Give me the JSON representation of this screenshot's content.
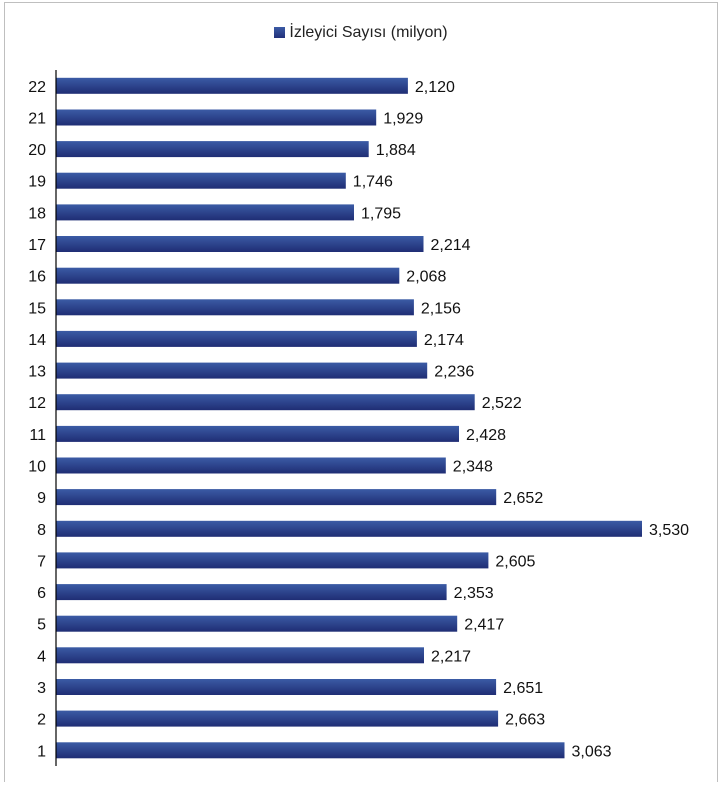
{
  "chart_data": {
    "type": "bar",
    "orientation": "horizontal",
    "categories": [
      "1",
      "2",
      "3",
      "4",
      "5",
      "6",
      "7",
      "8",
      "9",
      "10",
      "11",
      "12",
      "13",
      "14",
      "15",
      "16",
      "17",
      "18",
      "19",
      "20",
      "21",
      "22"
    ],
    "series": [
      {
        "name": "İzleyici Sayısı (milyon)",
        "values": [
          3.063,
          2.663,
          2.651,
          2.217,
          2.417,
          2.353,
          2.605,
          3.53,
          2.652,
          2.348,
          2.428,
          2.522,
          2.236,
          2.174,
          2.156,
          2.068,
          2.214,
          1.795,
          1.746,
          1.884,
          1.929,
          2.12
        ],
        "labels": [
          "3,063",
          "2,663",
          "2,651",
          "2,217",
          "2,417",
          "2,353",
          "2,605",
          "3,530",
          "2,652",
          "2,348",
          "2,428",
          "2,522",
          "2,236",
          "2,174",
          "2,156",
          "2,068",
          "2,214",
          "1,795",
          "1,746",
          "1,884",
          "1,929",
          "2,120"
        ]
      }
    ],
    "xlim": [
      0,
      4
    ],
    "grid": false,
    "legend_position": "top",
    "colors": {
      "bar_top": "#3b5ba5",
      "bar_bottom": "#1f2d74",
      "axis": "#000000"
    }
  }
}
